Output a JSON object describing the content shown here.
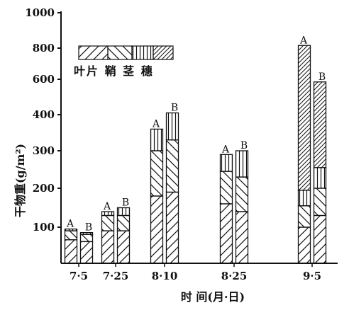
{
  "chart_data": {
    "type": "bar",
    "title": "",
    "xlabel": "时 间(月·日)",
    "ylabel": "干物重(g/m²)",
    "yticks": [
      "100",
      "200",
      "300",
      "400",
      "600",
      "800",
      "1000"
    ],
    "tick_values": [
      100,
      200,
      300,
      400,
      600,
      800,
      1000
    ],
    "ylim": [
      0,
      1000
    ],
    "y_scale": "broken (100-400 linear, then compressed 400-1000)",
    "categories": [
      "7·5",
      "7·25",
      "8·10",
      "8·25",
      "9·5"
    ],
    "groups": [
      "A",
      "B"
    ],
    "legend": {
      "label": "叶片 鞘 茎 穗",
      "components": [
        "叶片",
        "鞘",
        "茎",
        "穗"
      ],
      "position": "top-left"
    },
    "stacked": true,
    "series": [
      {
        "name": "叶片",
        "values": {
          "A": [
            65,
            90,
            180,
            160,
            100
          ],
          "B": [
            60,
            90,
            190,
            140,
            130
          ]
        }
      },
      {
        "name": "鞘",
        "values": {
          "A": [
            25,
            40,
            120,
            85,
            55
          ],
          "B": [
            20,
            40,
            140,
            90,
            70
          ]
        }
      },
      {
        "name": "茎",
        "values": {
          "A": [
            5,
            10,
            60,
            45,
            40
          ],
          "B": [
            5,
            20,
            80,
            70,
            55
          ]
        }
      },
      {
        "name": "穗",
        "values": {
          "A": [
            0,
            0,
            0,
            0,
            620
          ],
          "B": [
            0,
            0,
            0,
            0,
            330
          ]
        }
      }
    ],
    "totals": {
      "A": [
        95,
        140,
        360,
        290,
        815
      ],
      "B": [
        85,
        150,
        410,
        300,
        585
      ]
    }
  }
}
